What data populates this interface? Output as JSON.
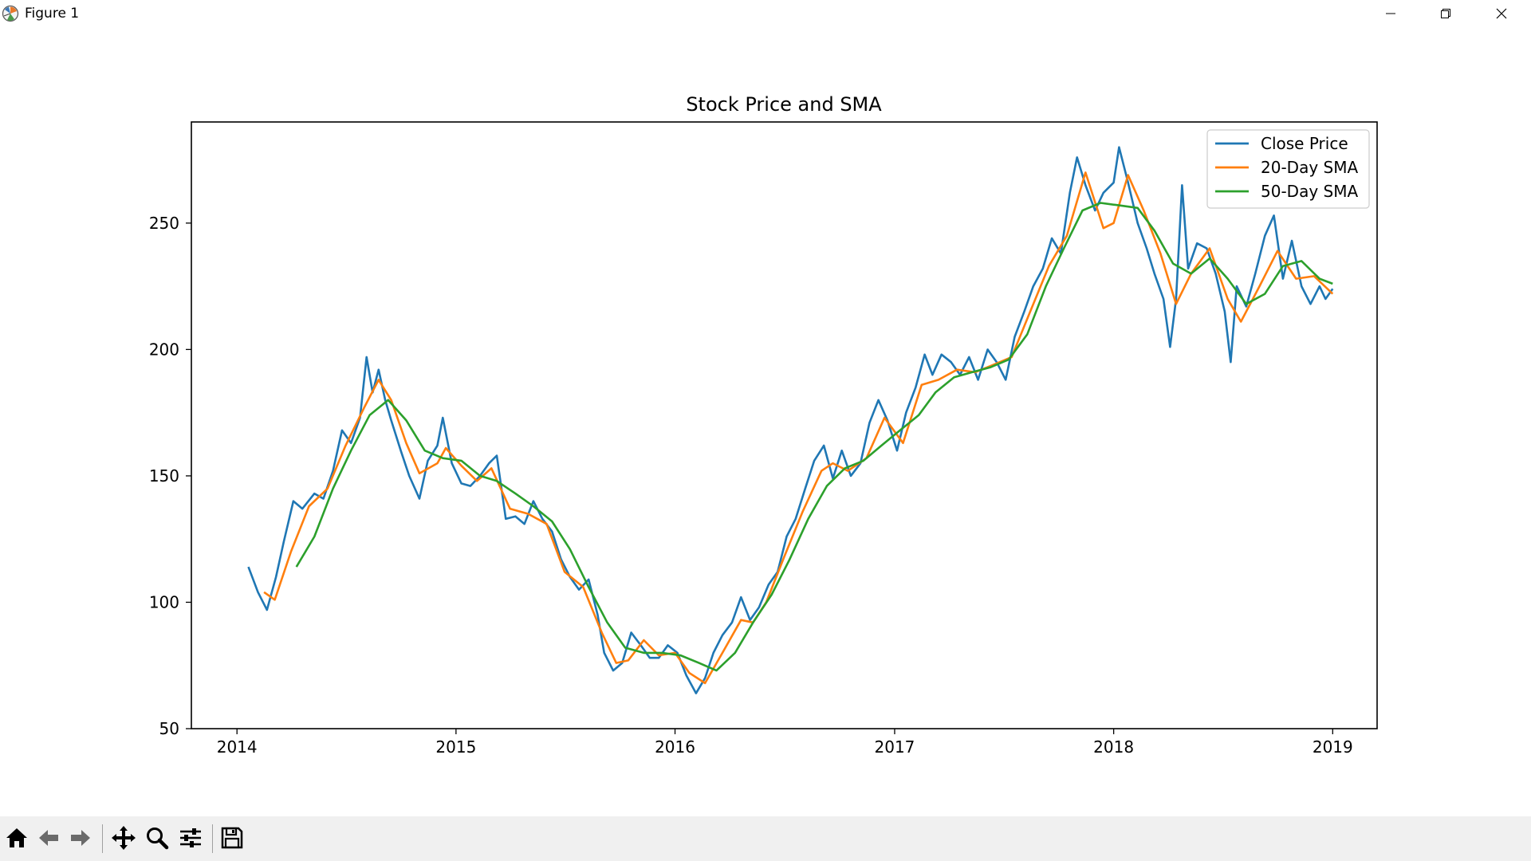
{
  "window": {
    "title": "Figure 1",
    "controls": {
      "minimize": "minimize-icon",
      "maximize": "restore-icon",
      "close": "close-icon"
    }
  },
  "toolbar": {
    "buttons": [
      "home-icon",
      "back-icon",
      "forward-icon",
      "pan-icon",
      "zoom-icon",
      "configure-subplots-icon",
      "save-icon"
    ]
  },
  "chart_data": {
    "type": "line",
    "title": "Stock Price and SMA",
    "xlabel": "",
    "ylabel": "",
    "x_ticks": [
      "2014",
      "2015",
      "2016",
      "2017",
      "2018",
      "2019"
    ],
    "y_ticks": [
      "50",
      "100",
      "150",
      "200",
      "250"
    ],
    "xlim": [
      "2013-10-17",
      "2019-03-16"
    ],
    "ylim": [
      50,
      290
    ],
    "grid": false,
    "legend": "top-right",
    "series": [
      {
        "name": "Close Price",
        "color": "#1f77b4",
        "points": [
          [
            "2014-01-20",
            114
          ],
          [
            "2014-02-05",
            104
          ],
          [
            "2014-02-20",
            97
          ],
          [
            "2014-03-07",
            110
          ],
          [
            "2014-03-20",
            124
          ],
          [
            "2014-04-05",
            140
          ],
          [
            "2014-04-20",
            137
          ],
          [
            "2014-05-10",
            143
          ],
          [
            "2014-05-25",
            141
          ],
          [
            "2014-06-10",
            152
          ],
          [
            "2014-06-25",
            168
          ],
          [
            "2014-07-10",
            163
          ],
          [
            "2014-07-25",
            173
          ],
          [
            "2014-08-05",
            197
          ],
          [
            "2014-08-15",
            183
          ],
          [
            "2014-08-25",
            192
          ],
          [
            "2014-09-05",
            180
          ],
          [
            "2014-09-15",
            172
          ],
          [
            "2014-10-01",
            160
          ],
          [
            "2014-10-15",
            150
          ],
          [
            "2014-11-01",
            141
          ],
          [
            "2014-11-15",
            156
          ],
          [
            "2014-12-01",
            162
          ],
          [
            "2014-12-10",
            173
          ],
          [
            "2014-12-25",
            155
          ],
          [
            "2015-01-10",
            147
          ],
          [
            "2015-01-25",
            146
          ],
          [
            "2015-02-10",
            150
          ],
          [
            "2015-02-25",
            155
          ],
          [
            "2015-03-10",
            158
          ],
          [
            "2015-03-25",
            133
          ],
          [
            "2015-04-10",
            134
          ],
          [
            "2015-04-25",
            131
          ],
          [
            "2015-05-10",
            140
          ],
          [
            "2015-05-25",
            133
          ],
          [
            "2015-06-10",
            128
          ],
          [
            "2015-06-25",
            117
          ],
          [
            "2015-07-10",
            110
          ],
          [
            "2015-07-25",
            105
          ],
          [
            "2015-08-10",
            109
          ],
          [
            "2015-08-25",
            95
          ],
          [
            "2015-09-05",
            80
          ],
          [
            "2015-09-20",
            73
          ],
          [
            "2015-10-05",
            76
          ],
          [
            "2015-10-20",
            88
          ],
          [
            "2015-11-05",
            83
          ],
          [
            "2015-11-20",
            78
          ],
          [
            "2015-12-05",
            78
          ],
          [
            "2015-12-20",
            83
          ],
          [
            "2016-01-05",
            80
          ],
          [
            "2016-01-20",
            71
          ],
          [
            "2016-02-05",
            64
          ],
          [
            "2016-02-20",
            70
          ],
          [
            "2016-03-05",
            80
          ],
          [
            "2016-03-20",
            87
          ],
          [
            "2016-04-05",
            92
          ],
          [
            "2016-04-20",
            102
          ],
          [
            "2016-05-05",
            93
          ],
          [
            "2016-05-20",
            98
          ],
          [
            "2016-06-05",
            107
          ],
          [
            "2016-06-20",
            112
          ],
          [
            "2016-07-05",
            126
          ],
          [
            "2016-07-20",
            133
          ],
          [
            "2016-08-05",
            145
          ],
          [
            "2016-08-20",
            156
          ],
          [
            "2016-09-05",
            162
          ],
          [
            "2016-09-20",
            149
          ],
          [
            "2016-10-05",
            160
          ],
          [
            "2016-10-20",
            150
          ],
          [
            "2016-11-05",
            155
          ],
          [
            "2016-11-20",
            171
          ],
          [
            "2016-12-05",
            180
          ],
          [
            "2016-12-20",
            172
          ],
          [
            "2017-01-05",
            160
          ],
          [
            "2017-01-20",
            175
          ],
          [
            "2017-02-05",
            185
          ],
          [
            "2017-02-20",
            198
          ],
          [
            "2017-03-05",
            190
          ],
          [
            "2017-03-20",
            198
          ],
          [
            "2017-04-05",
            195
          ],
          [
            "2017-04-20",
            190
          ],
          [
            "2017-05-05",
            197
          ],
          [
            "2017-05-20",
            188
          ],
          [
            "2017-06-05",
            200
          ],
          [
            "2017-06-20",
            195
          ],
          [
            "2017-07-05",
            188
          ],
          [
            "2017-07-20",
            205
          ],
          [
            "2017-08-05",
            215
          ],
          [
            "2017-08-20",
            225
          ],
          [
            "2017-09-05",
            232
          ],
          [
            "2017-09-20",
            244
          ],
          [
            "2017-10-05",
            238
          ],
          [
            "2017-10-20",
            262
          ],
          [
            "2017-11-01",
            276
          ],
          [
            "2017-11-15",
            265
          ],
          [
            "2017-12-01",
            255
          ],
          [
            "2017-12-15",
            262
          ],
          [
            "2018-01-01",
            266
          ],
          [
            "2018-01-10",
            280
          ],
          [
            "2018-01-25",
            266
          ],
          [
            "2018-02-10",
            250
          ],
          [
            "2018-02-25",
            240
          ],
          [
            "2018-03-10",
            230
          ],
          [
            "2018-03-25",
            220
          ],
          [
            "2018-04-05",
            201
          ],
          [
            "2018-04-15",
            220
          ],
          [
            "2018-04-25",
            265
          ],
          [
            "2018-05-05",
            232
          ],
          [
            "2018-05-20",
            242
          ],
          [
            "2018-06-05",
            240
          ],
          [
            "2018-06-20",
            230
          ],
          [
            "2018-07-05",
            215
          ],
          [
            "2018-07-15",
            195
          ],
          [
            "2018-07-25",
            225
          ],
          [
            "2018-08-10",
            217
          ],
          [
            "2018-08-25",
            230
          ],
          [
            "2018-09-10",
            245
          ],
          [
            "2018-09-25",
            253
          ],
          [
            "2018-10-10",
            228
          ],
          [
            "2018-10-25",
            243
          ],
          [
            "2018-11-10",
            225
          ],
          [
            "2018-11-25",
            218
          ],
          [
            "2018-12-10",
            225
          ],
          [
            "2018-12-20",
            220
          ],
          [
            "2019-01-01",
            224
          ]
        ]
      },
      {
        "name": "20-Day SMA",
        "color": "#ff7f0e",
        "points": [
          [
            "2014-02-15",
            104
          ],
          [
            "2014-03-05",
            101
          ],
          [
            "2014-04-01",
            120
          ],
          [
            "2014-05-01",
            138
          ],
          [
            "2014-06-01",
            145
          ],
          [
            "2014-07-01",
            162
          ],
          [
            "2014-08-01",
            177
          ],
          [
            "2014-08-25",
            188
          ],
          [
            "2014-09-15",
            180
          ],
          [
            "2014-10-10",
            163
          ],
          [
            "2014-11-01",
            151
          ],
          [
            "2014-12-01",
            155
          ],
          [
            "2014-12-15",
            161
          ],
          [
            "2015-01-10",
            154
          ],
          [
            "2015-02-05",
            148
          ],
          [
            "2015-03-01",
            153
          ],
          [
            "2015-04-01",
            137
          ],
          [
            "2015-05-01",
            135
          ],
          [
            "2015-06-01",
            131
          ],
          [
            "2015-07-01",
            112
          ],
          [
            "2015-08-01",
            106
          ],
          [
            "2015-09-01",
            88
          ],
          [
            "2015-09-25",
            76
          ],
          [
            "2015-10-15",
            77
          ],
          [
            "2015-11-10",
            85
          ],
          [
            "2015-12-05",
            79
          ],
          [
            "2016-01-01",
            80
          ],
          [
            "2016-01-25",
            72
          ],
          [
            "2016-02-20",
            68
          ],
          [
            "2016-03-20",
            80
          ],
          [
            "2016-04-20",
            93
          ],
          [
            "2016-05-10",
            92
          ],
          [
            "2016-06-01",
            100
          ],
          [
            "2016-07-01",
            118
          ],
          [
            "2016-08-01",
            136
          ],
          [
            "2016-09-01",
            152
          ],
          [
            "2016-09-20",
            155
          ],
          [
            "2016-10-15",
            152
          ],
          [
            "2016-11-15",
            157
          ],
          [
            "2016-12-15",
            173
          ],
          [
            "2017-01-15",
            163
          ],
          [
            "2017-02-15",
            186
          ],
          [
            "2017-03-15",
            188
          ],
          [
            "2017-04-15",
            192
          ],
          [
            "2017-05-15",
            191
          ],
          [
            "2017-06-15",
            194
          ],
          [
            "2017-07-15",
            197
          ],
          [
            "2017-08-15",
            215
          ],
          [
            "2017-09-15",
            233
          ],
          [
            "2017-10-15",
            245
          ],
          [
            "2017-11-15",
            270
          ],
          [
            "2017-12-15",
            248
          ],
          [
            "2018-01-01",
            250
          ],
          [
            "2018-01-25",
            269
          ],
          [
            "2018-02-20",
            255
          ],
          [
            "2018-03-20",
            238
          ],
          [
            "2018-04-15",
            218
          ],
          [
            "2018-05-10",
            230
          ],
          [
            "2018-06-10",
            240
          ],
          [
            "2018-07-10",
            220
          ],
          [
            "2018-08-01",
            211
          ],
          [
            "2018-09-01",
            225
          ],
          [
            "2018-10-01",
            239
          ],
          [
            "2018-11-01",
            228
          ],
          [
            "2018-12-01",
            229
          ],
          [
            "2019-01-01",
            222
          ]
        ]
      },
      {
        "name": "50-Day SMA",
        "color": "#2ca02c",
        "points": [
          [
            "2014-04-10",
            114
          ],
          [
            "2014-05-10",
            126
          ],
          [
            "2014-06-10",
            145
          ],
          [
            "2014-07-10",
            160
          ],
          [
            "2014-08-10",
            174
          ],
          [
            "2014-09-10",
            180
          ],
          [
            "2014-10-10",
            172
          ],
          [
            "2014-11-10",
            160
          ],
          [
            "2014-12-10",
            157
          ],
          [
            "2015-01-10",
            156
          ],
          [
            "2015-02-10",
            150
          ],
          [
            "2015-03-10",
            148
          ],
          [
            "2015-04-10",
            143
          ],
          [
            "2015-05-10",
            138
          ],
          [
            "2015-06-10",
            132
          ],
          [
            "2015-07-10",
            121
          ],
          [
            "2015-08-10",
            106
          ],
          [
            "2015-09-10",
            92
          ],
          [
            "2015-10-10",
            82
          ],
          [
            "2015-11-10",
            80
          ],
          [
            "2015-12-10",
            80
          ],
          [
            "2016-01-10",
            79
          ],
          [
            "2016-02-10",
            76
          ],
          [
            "2016-03-10",
            73
          ],
          [
            "2016-04-10",
            80
          ],
          [
            "2016-05-10",
            92
          ],
          [
            "2016-06-10",
            103
          ],
          [
            "2016-07-10",
            117
          ],
          [
            "2016-08-10",
            133
          ],
          [
            "2016-09-10",
            146
          ],
          [
            "2016-10-10",
            153
          ],
          [
            "2016-11-10",
            156
          ],
          [
            "2016-12-10",
            162
          ],
          [
            "2017-01-10",
            168
          ],
          [
            "2017-02-10",
            174
          ],
          [
            "2017-03-10",
            183
          ],
          [
            "2017-04-10",
            189
          ],
          [
            "2017-05-10",
            191
          ],
          [
            "2017-06-10",
            193
          ],
          [
            "2017-07-10",
            196
          ],
          [
            "2017-08-10",
            206
          ],
          [
            "2017-09-10",
            225
          ],
          [
            "2017-10-10",
            240
          ],
          [
            "2017-11-10",
            255
          ],
          [
            "2017-12-10",
            258
          ],
          [
            "2018-01-10",
            257
          ],
          [
            "2018-02-10",
            256
          ],
          [
            "2018-03-10",
            247
          ],
          [
            "2018-04-10",
            234
          ],
          [
            "2018-05-10",
            230
          ],
          [
            "2018-06-10",
            236
          ],
          [
            "2018-07-10",
            228
          ],
          [
            "2018-08-10",
            218
          ],
          [
            "2018-09-10",
            222
          ],
          [
            "2018-10-10",
            233
          ],
          [
            "2018-11-10",
            235
          ],
          [
            "2018-12-10",
            228
          ],
          [
            "2019-01-01",
            226
          ]
        ]
      }
    ]
  }
}
